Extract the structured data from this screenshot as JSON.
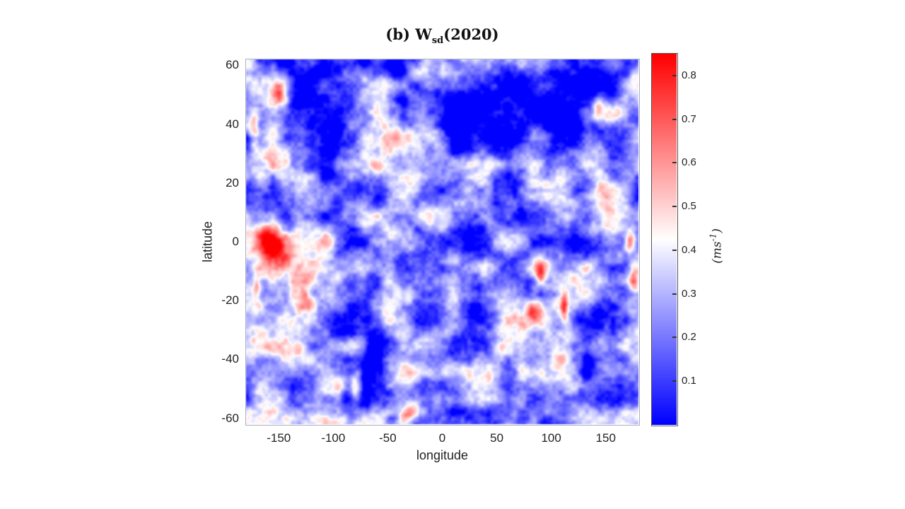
{
  "figure": {
    "title_prefix": "(b) ",
    "title_symbol": "W",
    "title_subscript": "sd",
    "title_suffix": "(2020)",
    "xlabel": "longitude",
    "ylabel": "latitude",
    "unit_open": "(ms",
    "unit_exp": "-1",
    "unit_close": ")"
  },
  "chart_data": {
    "type": "heatmap",
    "title": "(b) W_sd(2020)",
    "xlabel": "longitude",
    "ylabel": "latitude",
    "xlim": [
      -180,
      180
    ],
    "ylim": [
      -62,
      62
    ],
    "x_ticks": [
      "-150",
      "-100",
      "-50",
      "0",
      "50",
      "100",
      "150"
    ],
    "x_tick_values": [
      -150,
      -100,
      -50,
      0,
      50,
      100,
      150
    ],
    "y_ticks": [
      "60",
      "40",
      "20",
      "0",
      "-20",
      "-40",
      "-60"
    ],
    "y_tick_values": [
      60,
      40,
      20,
      0,
      -20,
      -40,
      -60
    ],
    "colormap": "blue-white-red",
    "value_range": [
      0,
      0.85
    ],
    "colorbar_ticks": [
      "0.8",
      "0.7",
      "0.6",
      "0.5",
      "0.4",
      "0.3",
      "0.2",
      "0.1"
    ],
    "colorbar_tick_values": [
      0.8,
      0.7,
      0.6,
      0.5,
      0.4,
      0.3,
      0.2,
      0.1
    ],
    "colorbar_label": "(ms^-1)",
    "base_value": 0.25,
    "noise": {
      "seed": 13,
      "cells_x": 15,
      "cells_y": 14,
      "octaves": 4,
      "octave_amps": [
        1,
        0.55,
        0.32,
        0.2
      ],
      "amplitude": 0.45
    },
    "features_format": [
      "lon",
      "lat",
      "rx_deg",
      "ry_deg",
      "delta_value",
      "power",
      "rot_deg"
    ],
    "features": [
      [
        -112,
        47,
        26,
        14,
        -0.21,
        2,
        0
      ],
      [
        -102,
        26,
        13,
        9,
        -0.15,
        2,
        0
      ],
      [
        -150,
        60,
        14,
        5,
        -0.12,
        2,
        0
      ],
      [
        -42,
        60,
        9,
        6,
        -0.13,
        2,
        0
      ],
      [
        45,
        47,
        46,
        16,
        -0.22,
        2,
        0
      ],
      [
        105,
        36,
        26,
        14,
        -0.18,
        2,
        0
      ],
      [
        140,
        54,
        22,
        9,
        -0.16,
        2,
        0
      ],
      [
        10,
        33,
        17,
        13,
        -0.15,
        2,
        0
      ],
      [
        17,
        10,
        22,
        12,
        -0.16,
        2,
        0
      ],
      [
        58,
        20,
        17,
        10,
        -0.13,
        2,
        0
      ],
      [
        25,
        -16,
        11,
        16,
        -0.17,
        2,
        0
      ],
      [
        -62,
        -6,
        13,
        9,
        -0.17,
        2,
        0
      ],
      [
        -63,
        -25,
        9,
        17,
        -0.18,
        2,
        0
      ],
      [
        -69,
        -46,
        5,
        10,
        -0.12,
        2,
        0
      ],
      [
        134,
        -26,
        13,
        8,
        -0.17,
        2,
        0
      ],
      [
        118,
        -2,
        14,
        7,
        -0.1,
        2,
        0
      ],
      [
        -157,
        -1,
        13,
        6,
        0.62,
        1,
        0
      ],
      [
        -144,
        -6,
        8,
        4,
        0.22,
        1,
        0
      ],
      [
        -150,
        51,
        9,
        5,
        0.42,
        1,
        0
      ],
      [
        -173,
        40,
        5,
        7,
        0.4,
        1,
        0
      ],
      [
        -130,
        33,
        6,
        16,
        0.14,
        1,
        0
      ],
      [
        -170,
        -16,
        4,
        5,
        0.3,
        1,
        0
      ],
      [
        -122,
        -21,
        11,
        4,
        0.28,
        1,
        20
      ],
      [
        -18,
        58,
        13,
        3.5,
        0.35,
        1,
        0
      ],
      [
        150,
        16,
        14,
        9,
        0.3,
        1,
        0
      ],
      [
        143,
        45,
        5,
        4,
        0.28,
        1,
        0
      ],
      [
        172,
        0,
        5,
        3.5,
        0.5,
        1,
        0
      ],
      [
        176,
        -13,
        5,
        4,
        0.33,
        1,
        0
      ],
      [
        90,
        -10,
        6,
        4.5,
        0.48,
        1,
        0
      ],
      [
        84,
        -24,
        6,
        3.5,
        0.38,
        1,
        0
      ],
      [
        112,
        -22,
        3.5,
        5,
        0.4,
        1,
        0
      ],
      [
        -80,
        -50,
        5,
        5,
        0.38,
        1,
        0
      ],
      [
        -95,
        -51,
        7,
        4,
        0.28,
        1,
        0
      ],
      [
        -33,
        -59,
        10,
        3.5,
        0.42,
        1,
        -15
      ],
      [
        -60,
        22,
        8,
        5,
        0.14,
        1,
        0
      ],
      [
        -140,
        -42,
        28,
        10,
        0.08,
        1,
        0
      ]
    ]
  }
}
